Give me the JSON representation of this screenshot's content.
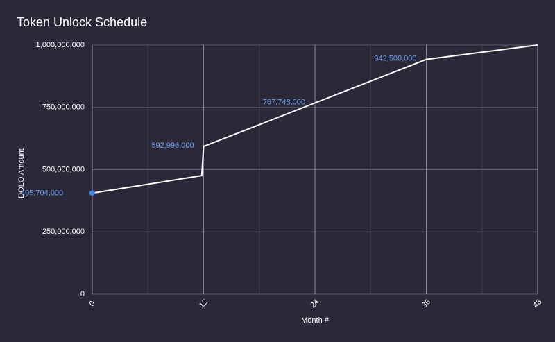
{
  "chart_data": {
    "type": "line",
    "title": "Token Unlock Schedule",
    "x_label": "Month #",
    "y_label": "DOLO Amount",
    "x": [
      0,
      11.8,
      12,
      24,
      36,
      48
    ],
    "series": [
      {
        "name": "DOLO Amount",
        "color": "#ffffff",
        "point_color": "#4a86e8",
        "label_color": "#6fa0f0",
        "values": [
          405704000,
          476000000,
          592996000,
          767748000,
          942500000,
          1000000000
        ],
        "value_labels": [
          "405,704,000",
          null,
          "592,996,000",
          "767,748,000",
          "942,500,000",
          null
        ]
      }
    ],
    "xlim": [
      0,
      48
    ],
    "xticks": [
      0,
      12,
      24,
      36,
      48
    ],
    "xminor": [
      6,
      18,
      30,
      42
    ],
    "ylim": [
      0,
      1000000000
    ],
    "yticks": [
      0,
      {
        "value": 250000000,
        "label": "250,000,000"
      },
      {
        "value": 500000000,
        "label": "500,000,000"
      },
      {
        "value": 750000000,
        "label": "750,000,000"
      },
      {
        "value": 1000000000,
        "label": "1,000,000,000"
      }
    ],
    "grid": true
  }
}
